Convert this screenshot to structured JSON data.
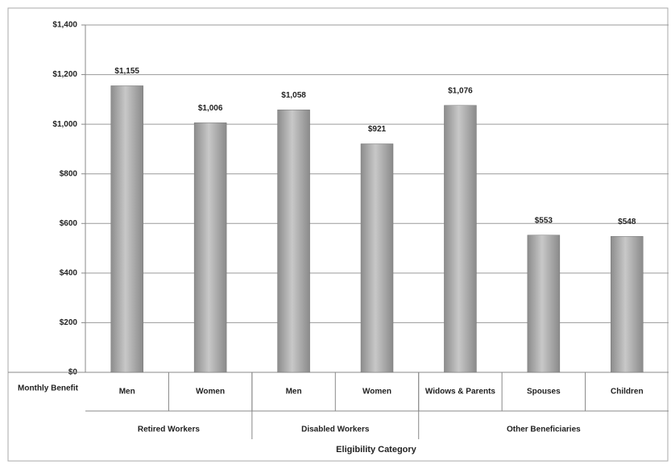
{
  "chart_data": {
    "type": "bar",
    "x_label": "Eligibility Category",
    "row_label": "Monthly Benefit",
    "categories": [
      "Men",
      "Women",
      "Men",
      "Women",
      "Widows & Parents",
      "Spouses",
      "Children"
    ],
    "groups": [
      {
        "name": "Retired Workers",
        "span": [
          0,
          1
        ]
      },
      {
        "name": "Disabled Workers",
        "span": [
          2,
          3
        ]
      },
      {
        "name": "Other Beneficiaries",
        "span": [
          4,
          6
        ]
      }
    ],
    "values": [
      1155,
      1006,
      1058,
      921,
      1076,
      553,
      548
    ],
    "value_labels": [
      "$1,155",
      "$1,006",
      "$1,058",
      "$921",
      "$1,076",
      "$553",
      "$548"
    ],
    "color": "#a9a9a9",
    "ylim": [
      0,
      1400
    ],
    "yticks": [
      {
        "value": 0,
        "label": "$0"
      },
      {
        "value": 200,
        "label": "$200"
      },
      {
        "value": 400,
        "label": "$400"
      },
      {
        "value": 600,
        "label": "$600"
      },
      {
        "value": 800,
        "label": "$800"
      },
      {
        "value": 1000,
        "label": "$1,000"
      },
      {
        "value": 1200,
        "label": "$1,200"
      },
      {
        "value": 1400,
        "label": "$1,400"
      }
    ],
    "grid": true
  }
}
